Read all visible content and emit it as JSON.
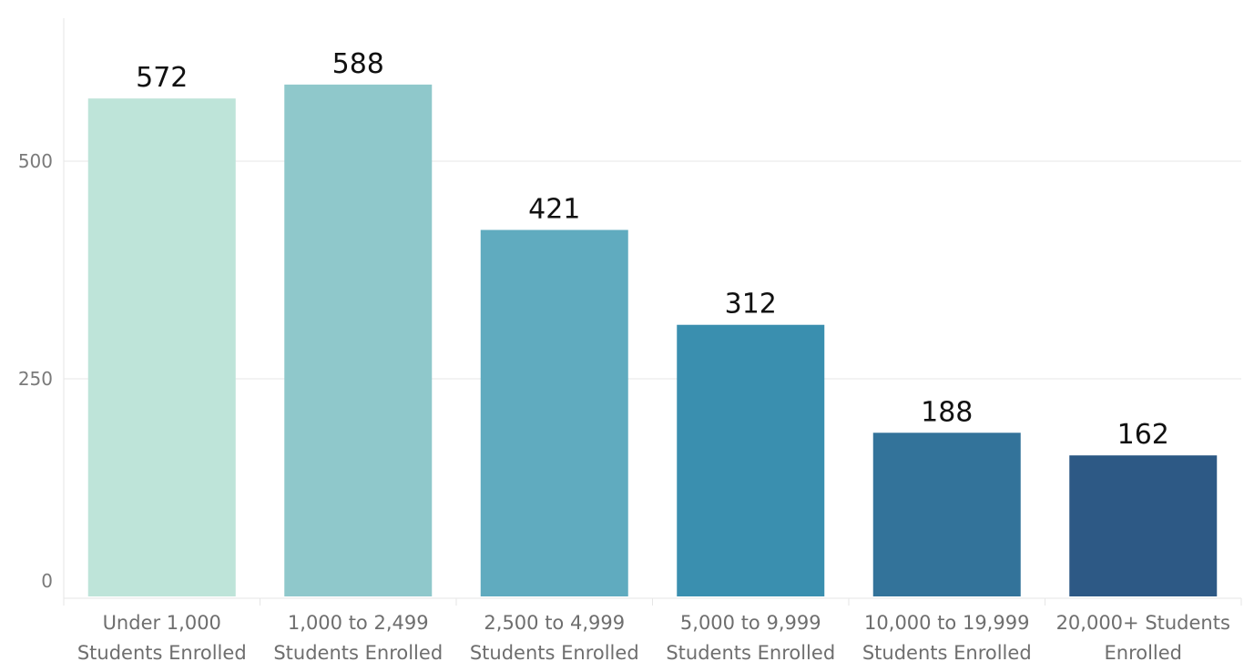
{
  "chart_data": {
    "type": "bar",
    "title": "",
    "xlabel": "",
    "ylabel": "",
    "categories": [
      [
        "Under 1,000",
        "Students Enrolled"
      ],
      [
        "1,000 to 2,499",
        "Students Enrolled"
      ],
      [
        "2,500 to 4,999",
        "Students Enrolled"
      ],
      [
        "5,000 to 9,999",
        "Students Enrolled"
      ],
      [
        "10,000 to 19,999",
        "Students Enrolled"
      ],
      [
        "20,000+ Students",
        "Enrolled"
      ]
    ],
    "values": [
      572,
      588,
      421,
      312,
      188,
      162
    ],
    "data_labels": [
      "572",
      "588",
      "421",
      "312",
      "188",
      "162"
    ],
    "colors": [
      "#bee4d9",
      "#8fc8cb",
      "#60abbf",
      "#3a8faf",
      "#33739a",
      "#2d5985"
    ],
    "ylim": [
      0,
      500
    ],
    "y_ticks": [
      0,
      250,
      500
    ],
    "y_tick_labels": [
      "0",
      "250",
      "500"
    ],
    "grid": true,
    "legend": "none"
  }
}
